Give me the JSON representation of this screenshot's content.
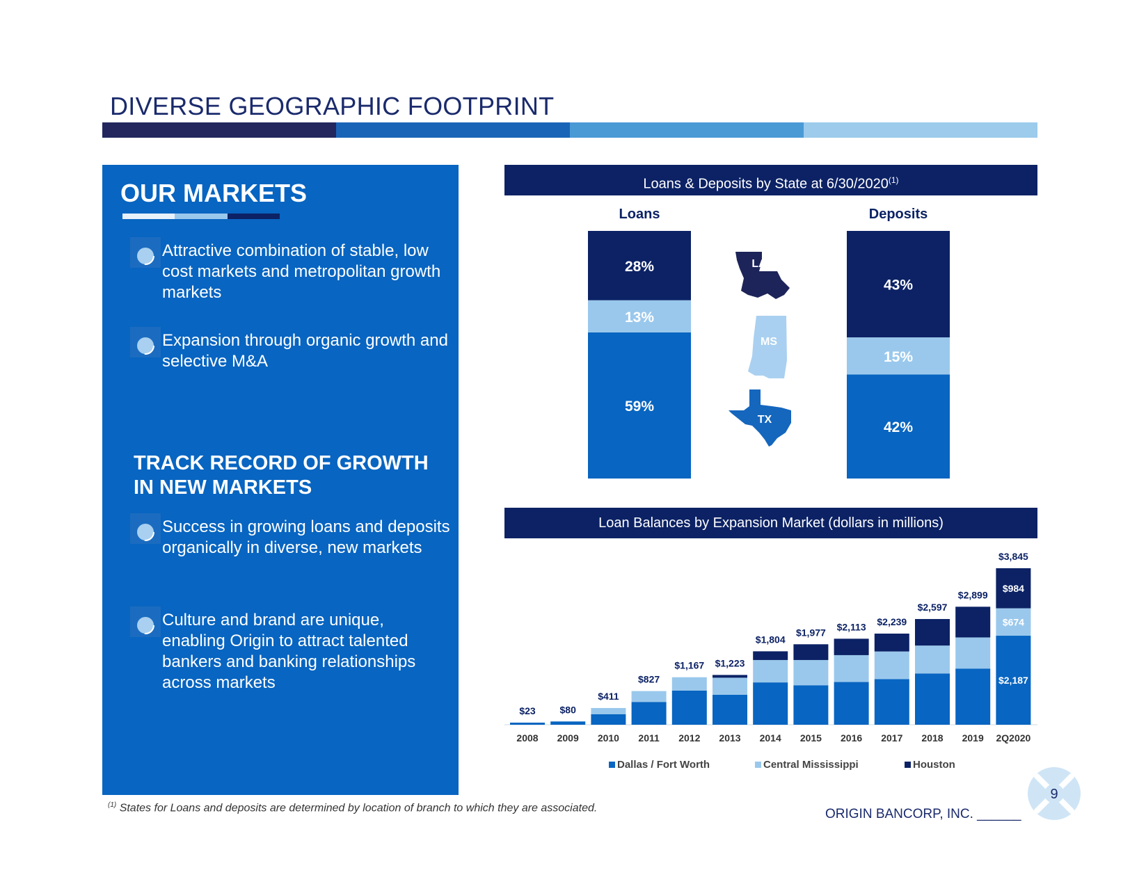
{
  "title": "DIVERSE GEOGRAPHIC FOOTPRINT",
  "colors": {
    "navy": "#0c2265",
    "blue": "#0865c1",
    "light_blue": "#9ac8ec",
    "title_bar": [
      "#23275e",
      "#1a64b8",
      "#4a9ad6",
      "#9ccbec"
    ]
  },
  "left_panel": {
    "heading1": "OUR MARKETS",
    "bullets1": [
      "Attractive combination of stable, low cost markets and metropolitan growth markets",
      "Expansion through organic growth and selective M&A"
    ],
    "heading2": "TRACK RECORD OF GROWTH IN NEW MARKETS",
    "bullets2": [
      "Success in growing loans and deposits organically in diverse, new markets",
      "Culture and brand are unique, enabling Origin to attract talented bankers and banking relationships across markets"
    ],
    "bullet_icon": "circle-bullet-icon"
  },
  "chart_data": [
    {
      "type": "bar",
      "title": "Loans & Deposits by State at 6/30/2020",
      "title_note": "(1)",
      "stacked": true,
      "categories": [
        "Loans",
        "Deposits"
      ],
      "series": [
        {
          "name": "TX",
          "values": [
            59,
            42
          ],
          "unit": "%"
        },
        {
          "name": "MS",
          "values": [
            13,
            15
          ],
          "unit": "%"
        },
        {
          "name": "LA",
          "values": [
            28,
            43
          ],
          "unit": "%"
        }
      ],
      "state_labels": [
        "LA",
        "MS",
        "TX"
      ],
      "ylim": [
        0,
        100
      ]
    },
    {
      "type": "bar",
      "title": "Loan Balances by Expansion Market (dollars in millions)",
      "stacked": true,
      "categories": [
        "2008",
        "2009",
        "2010",
        "2011",
        "2012",
        "2013",
        "2014",
        "2015",
        "2016",
        "2017",
        "2018",
        "2019",
        "2Q2020"
      ],
      "totals": [
        23,
        80,
        411,
        827,
        1167,
        1223,
        1804,
        1977,
        2113,
        2239,
        2597,
        2899,
        3845
      ],
      "total_labels": [
        "$23",
        "$80",
        "$411",
        "$827",
        "$1,167",
        "$1,223",
        "$1,804",
        "$1,977",
        "$2,113",
        "$2,239",
        "$2,597",
        "$2,899",
        "$3,845"
      ],
      "series": [
        {
          "name": "Dallas / Fort Worth",
          "values": [
            23,
            80,
            260,
            560,
            840,
            735,
            1040,
            970,
            1050,
            1120,
            1260,
            1380,
            2187
          ]
        },
        {
          "name": "Central Mississippi",
          "values": [
            0,
            0,
            151,
            267,
            327,
            420,
            550,
            620,
            660,
            680,
            685,
            765,
            674
          ]
        },
        {
          "name": "Houston",
          "values": [
            0,
            0,
            0,
            0,
            0,
            68,
            214,
            387,
            403,
            439,
            652,
            754,
            984
          ]
        }
      ],
      "segment_labels_2Q2020": [
        "$2,187",
        "$674",
        "$984"
      ],
      "ylim": [
        0,
        4000
      ]
    }
  ],
  "footnote": {
    "marker": "(1)",
    "text": "States for Loans and deposits are determined by location of branch to which they are associated."
  },
  "company": "ORIGIN BANCORP, INC.",
  "page_number": "9"
}
